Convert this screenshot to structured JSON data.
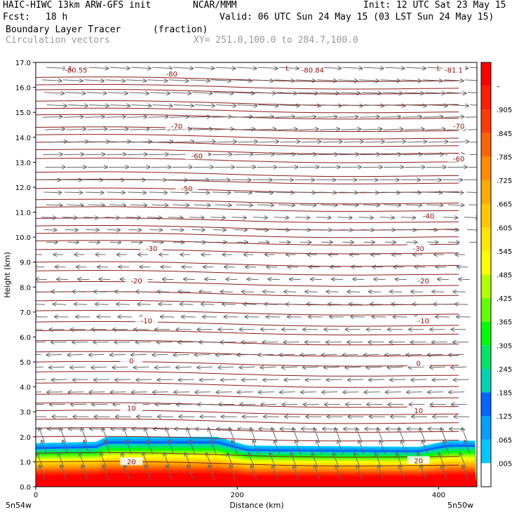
{
  "header": {
    "model_title": "HAIC-HIWC 13km ARW-GFS init",
    "org": "NCAR/MMM",
    "init": "Init: 12 UTC Sat 23 May 15",
    "fcst_label": "Fcst:",
    "fcst_value": "18 h",
    "valid": "Valid: 06 UTC Sun 24 May 15 (03 LST Sun 24 May 15)",
    "field_name": "Boundary Layer Tracer",
    "field_unit": "(fraction)",
    "vector_name": "Circulation vectors",
    "xy_range": "XY= 251.0,100.0 to 284.7,100.0"
  },
  "chart_data": {
    "type": "cross-section",
    "xlabel": "Distance (km)",
    "ylabel": "Height (km)",
    "xlim": [
      0,
      438
    ],
    "ylim": [
      0,
      17
    ],
    "x_ticks": [
      0,
      200,
      400
    ],
    "y_ticks": [
      "0.0",
      "1.0",
      "2.0",
      "3.0",
      "4.0",
      "5.0",
      "6.0",
      "7.0",
      "8.0",
      "9.0",
      "10.0",
      "11.0",
      "12.0",
      "13.0",
      "14.0",
      "15.0",
      "16.0",
      "17.0"
    ],
    "x_endpoint_labels": [
      "5n54w",
      "5n50w"
    ],
    "colorbar": {
      "labels": [
        ".005",
        ".065",
        ".125",
        ".185",
        ".245",
        ".305",
        ".365",
        ".425",
        ".485",
        ".545",
        ".605",
        ".665",
        ".725",
        ".785",
        ".845",
        ".905",
        "–"
      ],
      "colors": [
        "#ffffff",
        "#00c8ff",
        "#00a0ff",
        "#0064ff",
        "#00d2b4",
        "#00e664",
        "#00ff00",
        "#64ff00",
        "#b4ff00",
        "#ffff00",
        "#ffe600",
        "#ffc800",
        "#ffaa00",
        "#ff8c00",
        "#ff6400",
        "#ff3c00",
        "#ff1e00",
        "#ff0000"
      ]
    },
    "tracer_top_km": [
      {
        "x": 0,
        "z": 1.75
      },
      {
        "x": 60,
        "z": 1.8
      },
      {
        "x": 70,
        "z": 2.0
      },
      {
        "x": 180,
        "z": 2.0
      },
      {
        "x": 210,
        "z": 1.65
      },
      {
        "x": 380,
        "z": 1.6
      },
      {
        "x": 410,
        "z": 1.85
      },
      {
        "x": 438,
        "z": 1.85
      }
    ],
    "isotherms": [
      {
        "value": -80,
        "labels": [
          {
            "text": "-80.55",
            "x": 40,
            "z": 16.65
          },
          {
            "text": "-80",
            "x": 135,
            "z": 16.5
          },
          {
            "text": "-80.84",
            "x": 275,
            "z": 16.65
          },
          {
            "text": "-81.1",
            "x": 415,
            "z": 16.65
          }
        ]
      },
      {
        "value": -70,
        "labels": [
          {
            "text": "-70",
            "x": 140,
            "z": 14.4
          },
          {
            "text": "-70",
            "x": 420,
            "z": 14.4
          }
        ]
      },
      {
        "value": -60,
        "labels": [
          {
            "text": "-60",
            "x": 160,
            "z": 13.2
          },
          {
            "text": "-60",
            "x": 420,
            "z": 13.1
          }
        ]
      },
      {
        "value": -50,
        "labels": [
          {
            "text": "-50",
            "x": 150,
            "z": 11.9
          }
        ]
      },
      {
        "value": -40,
        "labels": [
          {
            "text": "-40",
            "x": 390,
            "z": 10.8
          }
        ]
      },
      {
        "value": -30,
        "labels": [
          {
            "text": "-30",
            "x": 115,
            "z": 9.5
          },
          {
            "text": "-30",
            "x": 380,
            "z": 9.5
          }
        ]
      },
      {
        "value": -20,
        "labels": [
          {
            "text": "-20",
            "x": 100,
            "z": 8.2
          },
          {
            "text": "-20",
            "x": 385,
            "z": 8.2
          }
        ]
      },
      {
        "value": -10,
        "labels": [
          {
            "text": "-10",
            "x": 110,
            "z": 6.6
          },
          {
            "text": "-10",
            "x": 385,
            "z": 6.6
          }
        ]
      },
      {
        "value": 0,
        "labels": [
          {
            "text": "0",
            "x": 95,
            "z": 5.0
          },
          {
            "text": "0",
            "x": 380,
            "z": 4.9
          }
        ]
      },
      {
        "value": 10,
        "labels": [
          {
            "text": "10",
            "x": 95,
            "z": 3.1
          },
          {
            "text": "10",
            "x": 380,
            "z": 3.0
          }
        ]
      },
      {
        "value": 20,
        "labels": [
          {
            "text": "20",
            "x": 95,
            "z": 0.95
          },
          {
            "text": "20",
            "x": 380,
            "z": 1.0
          }
        ]
      }
    ],
    "lows": [
      {
        "text": "L",
        "x": 35,
        "z": 16.9
      },
      {
        "text": "L",
        "x": 250,
        "z": 16.9
      },
      {
        "text": "L",
        "x": 400,
        "z": 16.9
      }
    ],
    "vectors": {
      "upper_direction": "eastward",
      "lower_direction": "westward",
      "reversal_km": 9.5
    }
  }
}
